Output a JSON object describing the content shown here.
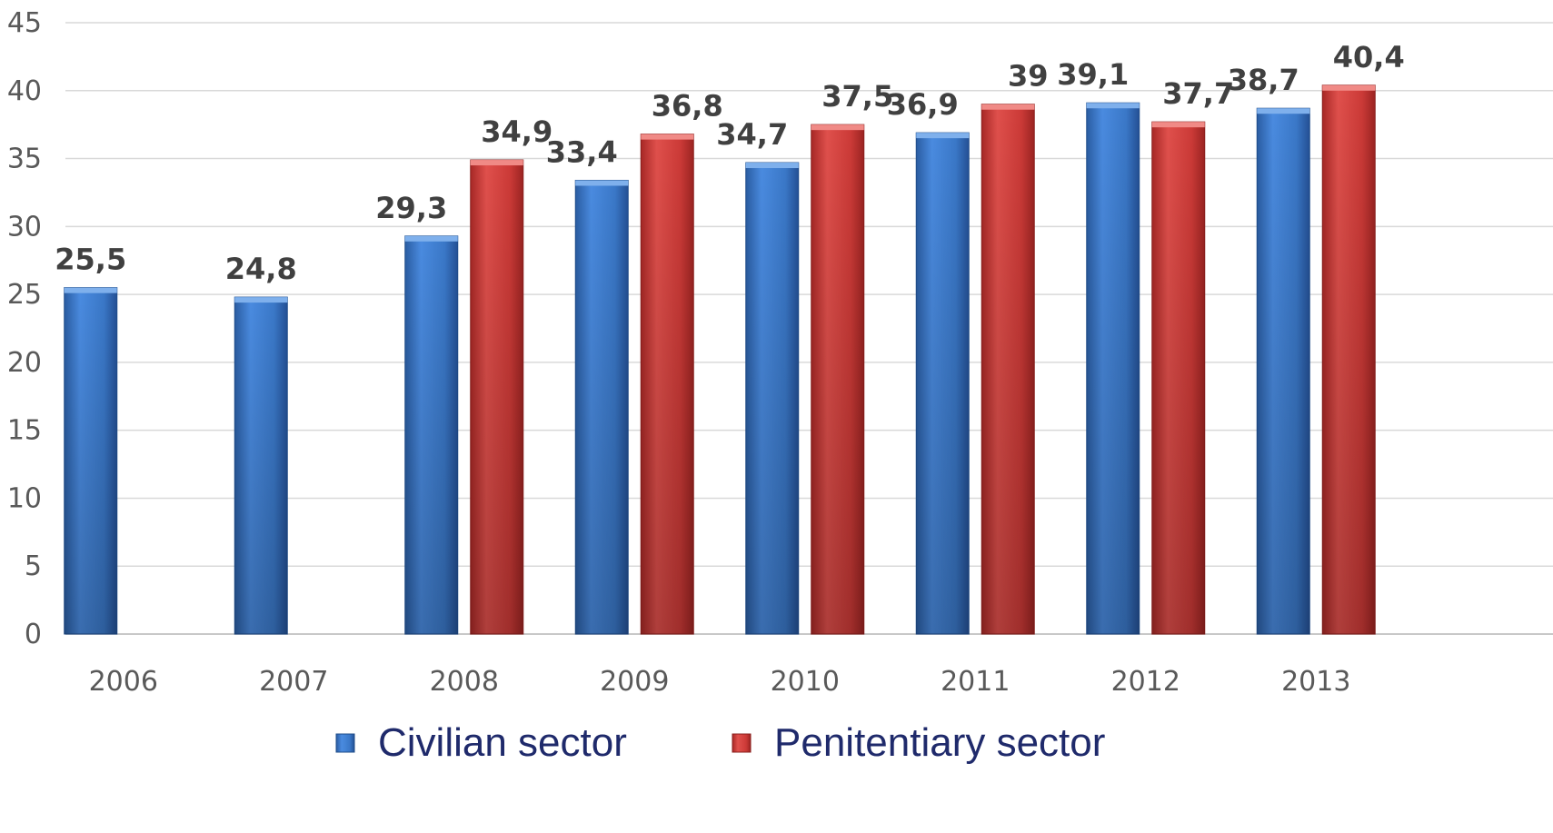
{
  "chart_data": {
    "type": "bar",
    "title": "",
    "xlabel": "",
    "ylabel": "",
    "categories": [
      "2006",
      "2007",
      "2008",
      "2009",
      "2010",
      "2011",
      "2012",
      "2013"
    ],
    "series": [
      {
        "name": "Civilian sector",
        "color": "#3d7fd0",
        "values": [
          25.5,
          24.8,
          29.3,
          33.4,
          34.7,
          36.9,
          39.1,
          38.7
        ],
        "labels": [
          "25,5",
          "24,8",
          "29,3",
          "33,4",
          "34,7",
          "36,9",
          "39,1",
          "38,7"
        ]
      },
      {
        "name": "Penitentiary sector",
        "color": "#d23a38",
        "values": [
          null,
          null,
          34.9,
          36.8,
          37.5,
          39,
          37.7,
          40.4
        ],
        "labels": [
          "",
          "",
          "34,9",
          "36,8",
          "37,5",
          "39",
          "37,7",
          "40,4"
        ]
      }
    ],
    "ylim": [
      0,
      45
    ],
    "yticks": [
      0,
      5,
      10,
      15,
      20,
      25,
      30,
      35,
      40,
      45
    ],
    "grid": true,
    "legend_position": "bottom"
  }
}
